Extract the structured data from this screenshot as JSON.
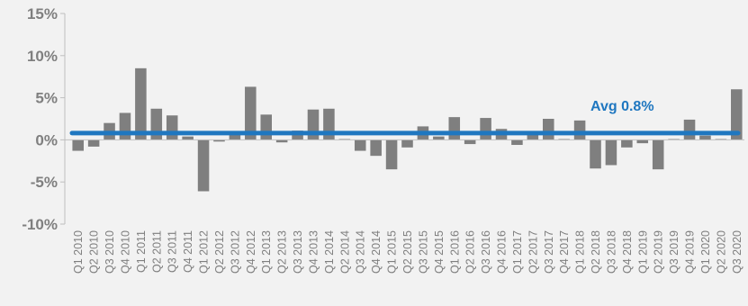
{
  "chart_data": {
    "type": "bar",
    "title": "",
    "xlabel": "",
    "ylabel": "",
    "ylim": [
      -10,
      15
    ],
    "yticks": [
      {
        "value": 15,
        "label": "15%"
      },
      {
        "value": 10,
        "label": "10%"
      },
      {
        "value": 5,
        "label": "5%"
      },
      {
        "value": 0,
        "label": "0%"
      },
      {
        "value": -5,
        "label": "-5%"
      },
      {
        "value": -10,
        "label": "-10%"
      }
    ],
    "grid": false,
    "categories": [
      "Q1 2010",
      "Q2 2010",
      "Q3 2010",
      "Q4 2010",
      "Q1 2011",
      "Q2 2011",
      "Q3 2011",
      "Q4 2011",
      "Q1 2012",
      "Q2 2012",
      "Q3 2012",
      "Q4 2012",
      "Q1 2013",
      "Q2 2013",
      "Q3 2013",
      "Q4 2013",
      "Q1 2014",
      "Q2 2014",
      "Q3 2014",
      "Q4 2014",
      "Q1 2015",
      "Q2 2015",
      "Q3 2015",
      "Q4 2015",
      "Q1 2016",
      "Q2 2016",
      "Q3 2016",
      "Q4 2016",
      "Q1 2017",
      "Q2 2017",
      "Q3 2017",
      "Q4 2017",
      "Q1 2018",
      "Q2 2018",
      "Q3 2018",
      "Q4 2018",
      "Q1 2019",
      "Q2 2019",
      "Q3 2019",
      "Q4 2019",
      "Q1 2020",
      "Q2 2020",
      "Q3 2020"
    ],
    "series": [
      {
        "values": [
          -1.3,
          -0.8,
          2.0,
          3.2,
          8.5,
          3.7,
          2.9,
          0.4,
          -6.1,
          -0.2,
          0.6,
          6.3,
          3.0,
          -0.3,
          1.1,
          3.6,
          3.7,
          0.1,
          -1.3,
          -1.9,
          -3.5,
          -0.9,
          1.6,
          0.4,
          2.7,
          -0.5,
          2.6,
          1.3,
          -0.6,
          0.7,
          2.5,
          0.1,
          2.3,
          -3.4,
          -3.0,
          -0.9,
          -0.4,
          -3.5,
          0.1,
          2.4,
          0.5,
          0.1,
          6.0
        ]
      }
    ],
    "average": {
      "value": 0.8,
      "label": "Avg 0.8%"
    },
    "colors": {
      "bars": "#7f7f7f",
      "avg_line": "#1f77c0",
      "axis": "#bfbfbf",
      "text": "#7f7f7f",
      "background": "#f2f2f2"
    }
  }
}
